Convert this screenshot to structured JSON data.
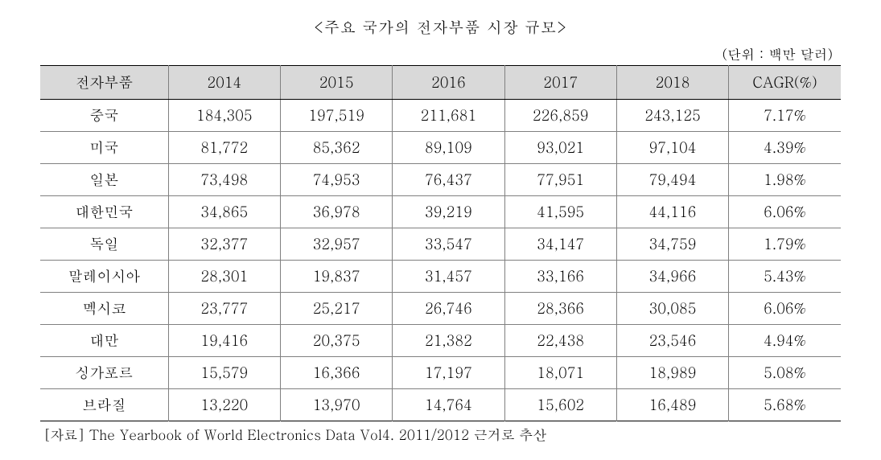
{
  "title": "<주요 국가의 전자부품 시장 규모>",
  "unit": "(단위 : 백만 달러)",
  "columns": [
    "전자부품",
    "2014",
    "2015",
    "2016",
    "2017",
    "2018",
    "CAGR(%)"
  ],
  "rows": [
    [
      "중국",
      "184,305",
      "197,519",
      "211,681",
      "226,859",
      "243,125",
      "7.17%"
    ],
    [
      "미국",
      "81,772",
      "85,362",
      "89,109",
      "93,021",
      "97,104",
      "4.39%"
    ],
    [
      "일본",
      "73,498",
      "74,953",
      "76,437",
      "77,951",
      "79,494",
      "1.98%"
    ],
    [
      "대한민국",
      "34,865",
      "36,978",
      "39,219",
      "41,595",
      "44,116",
      "6.06%"
    ],
    [
      "독일",
      "32,377",
      "32,957",
      "33,547",
      "34,147",
      "34,759",
      "1.79%"
    ],
    [
      "말레이시아",
      "28,301",
      "19,837",
      "31,457",
      "33,166",
      "34,966",
      "5.43%"
    ],
    [
      "멕시코",
      "23,777",
      "25,217",
      "26,746",
      "28,366",
      "30,085",
      "6.06%"
    ],
    [
      "대만",
      "19,416",
      "20,375",
      "21,382",
      "22,438",
      "23,546",
      "4.94%"
    ],
    [
      "싱가포르",
      "15,579",
      "16,366",
      "17,197",
      "18,071",
      "18,989",
      "5.08%"
    ],
    [
      "브라질",
      "13,220",
      "13,970",
      "14,764",
      "15,602",
      "16,489",
      "5.68%"
    ]
  ],
  "source": "[자료] The Yearbook of World Electronics Data Vol4. 2011/2012 근거로 추산",
  "column_widths": [
    "16%",
    "14%",
    "14%",
    "14%",
    "14%",
    "14%",
    "14%"
  ],
  "styles": {
    "header_bg": "#d9d9d9",
    "border_color": "#808080",
    "border_top_bottom": "#000000",
    "font_size_title": 19,
    "font_size_body": 18,
    "font_size_unit": 17,
    "font_size_source": 17,
    "background": "#ffffff",
    "text_color": "#000000"
  }
}
